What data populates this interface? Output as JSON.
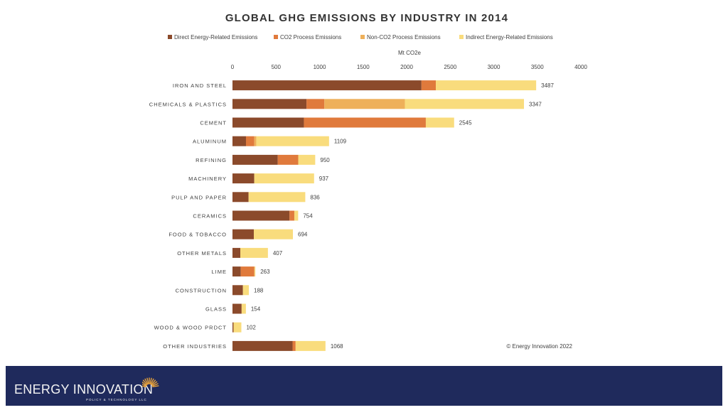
{
  "colors": {
    "direct": "#8b4a2b",
    "co2_process": "#e07a3c",
    "non_co2_process": "#eeb05a",
    "indirect": "#f9dc7d",
    "footer": "#1f2a5c",
    "sunburst": "#e8a23a"
  },
  "chart_data": {
    "type": "bar",
    "orientation": "horizontal",
    "stacked": true,
    "title": "GLOBAL GHG EMISSIONS BY INDUSTRY IN 2014",
    "xlabel": "Mt CO2e",
    "xlim": [
      0,
      4000
    ],
    "xticks": [
      0,
      500,
      1000,
      1500,
      2000,
      2500,
      3000,
      3500,
      4000
    ],
    "legend_position": "top",
    "categories": [
      "IRON AND STEEL",
      "CHEMICALS & PLASTICS",
      "CEMENT",
      "ALUMINUM",
      "REFINING",
      "MACHINERY",
      "PULP AND PAPER",
      "CERAMICS",
      "FOOD & TOBACCO",
      "OTHER METALS",
      "LIME",
      "CONSTRUCTION",
      "GLASS",
      "WOOD & WOOD PRDCT",
      "OTHER INDUSTRIES"
    ],
    "series": [
      {
        "name": "Direct Energy-Related Emissions",
        "color_key": "direct",
        "values": [
          2170,
          850,
          820,
          155,
          520,
          250,
          185,
          655,
          245,
          90,
          95,
          120,
          105,
          12,
          690
        ]
      },
      {
        "name": "CO2 Process Emissions",
        "color_key": "co2_process",
        "values": [
          165,
          205,
          1400,
          95,
          235,
          0,
          0,
          55,
          0,
          0,
          155,
          0,
          0,
          0,
          35
        ]
      },
      {
        "name": "Non-CO2 Process Emissions",
        "color_key": "non_co2_process",
        "values": [
          0,
          925,
          0,
          25,
          0,
          0,
          0,
          0,
          0,
          0,
          5,
          0,
          0,
          0,
          0
        ]
      },
      {
        "name": "Indirect Energy-Related Emissions",
        "color_key": "indirect",
        "values": [
          1152,
          1367,
          325,
          834,
          195,
          687,
          651,
          44,
          449,
          317,
          8,
          68,
          49,
          90,
          343
        ]
      }
    ],
    "totals": [
      3487,
      3347,
      2545,
      1109,
      950,
      937,
      836,
      754,
      694,
      407,
      263,
      188,
      154,
      102,
      1068
    ],
    "annotation": "© Energy Innovation 2022"
  },
  "footer": {
    "logo_text": "ENERGY INNOVATION",
    "logo_subtext": "POLICY & TECHNOLOGY LLC"
  }
}
